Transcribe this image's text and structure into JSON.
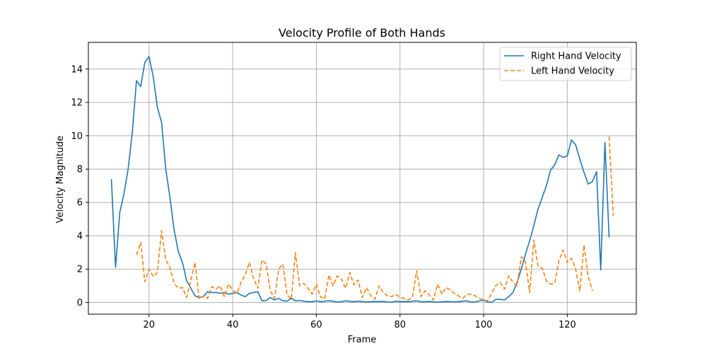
{
  "chart_data": {
    "type": "line",
    "title": "Velocity Profile of Both Hands",
    "xlabel": "Frame",
    "ylabel": "Velocity Magnitude",
    "xlim": [
      5.5,
      136.5
    ],
    "ylim": [
      -0.7,
      15.6
    ],
    "xticks": [
      20,
      40,
      60,
      80,
      100,
      120
    ],
    "yticks": [
      0,
      2,
      4,
      6,
      8,
      10,
      12,
      14
    ],
    "grid": true,
    "legend_position": "top-right",
    "series": [
      {
        "name": "Right Hand Velocity",
        "color": "#1f77b4",
        "dash": "solid",
        "x": [
          11,
          12,
          13,
          14,
          15,
          16,
          17,
          18,
          19,
          20,
          21,
          22,
          23,
          24,
          25,
          26,
          27,
          28,
          29,
          30,
          31,
          32,
          33,
          34,
          35,
          36,
          37,
          38,
          39,
          40,
          41,
          42,
          43,
          44,
          45,
          46,
          47,
          48,
          49,
          50,
          51,
          52,
          53,
          54,
          55,
          56,
          57,
          58,
          59,
          60,
          61,
          62,
          63,
          64,
          65,
          66,
          67,
          68,
          69,
          70,
          71,
          72,
          73,
          74,
          75,
          76,
          77,
          78,
          79,
          80,
          81,
          82,
          83,
          84,
          85,
          86,
          87,
          88,
          89,
          90,
          91,
          92,
          93,
          94,
          95,
          96,
          97,
          98,
          99,
          100,
          101,
          102,
          103,
          104,
          105,
          106,
          107,
          108,
          109,
          110,
          111,
          112,
          113,
          114,
          115,
          116,
          117,
          118,
          119,
          120,
          121,
          122,
          123,
          124,
          125,
          126,
          127,
          128,
          129,
          130
        ],
        "y": [
          7.4,
          2.1,
          5.4,
          6.5,
          8.0,
          10.2,
          13.3,
          12.95,
          14.4,
          14.75,
          13.55,
          11.7,
          10.8,
          8.0,
          6.3,
          4.35,
          3.05,
          2.4,
          1.3,
          0.85,
          0.4,
          0.3,
          0.35,
          0.65,
          0.6,
          0.6,
          0.55,
          0.6,
          0.5,
          0.55,
          0.6,
          0.45,
          0.35,
          0.55,
          0.6,
          0.65,
          0.1,
          0.12,
          0.3,
          0.15,
          0.25,
          0.1,
          0.08,
          0.25,
          0.1,
          0.12,
          0.08,
          0.05,
          0.05,
          0.1,
          0.05,
          0.08,
          0.1,
          0.08,
          0.03,
          0.05,
          0.1,
          0.07,
          0.05,
          0.08,
          0.06,
          0.03,
          0.05,
          0.06,
          0.05,
          0.07,
          0.03,
          0.02,
          0.08,
          0.05,
          0.06,
          0.05,
          0.08,
          0.1,
          0.05,
          0.04,
          0.07,
          0.04,
          0.02,
          0.04,
          0.06,
          0.05,
          0.04,
          0.05,
          0.08,
          0.1,
          0.02,
          0.04,
          0.1,
          0.15,
          0.03,
          0.02,
          0.2,
          0.18,
          0.15,
          0.35,
          0.6,
          1.2,
          2.0,
          2.9,
          3.7,
          4.6,
          5.6,
          6.3,
          7.0,
          7.95,
          8.25,
          8.85,
          8.7,
          8.8,
          9.75,
          9.45,
          8.6,
          7.8,
          7.1,
          7.25,
          7.85,
          1.95,
          9.6,
          3.9
        ]
      },
      {
        "name": "Left Hand Velocity",
        "color": "#ff7f0e",
        "dash": "dashed",
        "x": [
          17,
          18,
          19,
          20,
          21,
          22,
          23,
          24,
          25,
          26,
          27,
          28,
          29,
          30,
          31,
          32,
          33,
          34,
          35,
          36,
          37,
          38,
          39,
          40,
          41,
          42,
          43,
          44,
          45,
          46,
          47,
          48,
          49,
          50,
          51,
          52,
          53,
          54,
          55,
          56,
          57,
          58,
          59,
          60,
          61,
          62,
          63,
          64,
          65,
          66,
          67,
          68,
          69,
          70,
          71,
          72,
          73,
          74,
          75,
          76,
          77,
          78,
          79,
          80,
          81,
          82,
          83,
          84,
          85,
          86,
          87,
          88,
          89,
          90,
          91,
          92,
          93,
          94,
          95,
          96,
          97,
          98,
          99,
          100,
          101,
          102,
          103,
          104,
          105,
          106,
          107,
          108,
          109,
          110,
          111,
          112,
          113,
          114,
          115,
          116,
          117,
          118,
          119,
          120,
          121,
          122,
          123,
          124,
          125,
          126,
          127,
          128,
          129,
          130,
          131
        ],
        "y": [
          2.85,
          3.6,
          1.25,
          2.0,
          1.55,
          1.8,
          4.3,
          2.55,
          2.1,
          1.15,
          0.85,
          0.9,
          0.3,
          1.35,
          2.4,
          0.2,
          0.4,
          0.25,
          0.95,
          0.8,
          1.0,
          0.35,
          1.1,
          0.75,
          0.55,
          1.2,
          1.65,
          2.4,
          1.45,
          0.85,
          2.55,
          2.3,
          0.7,
          0.25,
          2.0,
          2.3,
          0.45,
          0.2,
          3.0,
          1.0,
          1.15,
          0.85,
          0.5,
          1.1,
          0.35,
          0.2,
          1.65,
          1.0,
          1.6,
          1.4,
          0.85,
          1.8,
          1.05,
          1.35,
          0.3,
          0.9,
          0.4,
          0.2,
          1.0,
          0.6,
          0.4,
          0.35,
          0.5,
          0.3,
          0.25,
          0.15,
          0.35,
          1.9,
          0.35,
          0.7,
          0.45,
          0.15,
          1.1,
          0.5,
          0.9,
          0.75,
          0.55,
          0.4,
          0.25,
          0.5,
          0.5,
          0.4,
          0.25,
          0.15,
          0.1,
          0.6,
          1.05,
          1.2,
          0.8,
          1.6,
          1.2,
          1.0,
          2.75,
          2.45,
          0.6,
          3.75,
          2.2,
          2.05,
          1.3,
          1.1,
          1.15,
          2.5,
          3.15,
          2.4,
          2.65,
          2.0,
          0.7,
          3.45,
          1.55,
          0.7,
          null,
          null,
          null,
          9.95,
          5.2
        ]
      }
    ]
  }
}
